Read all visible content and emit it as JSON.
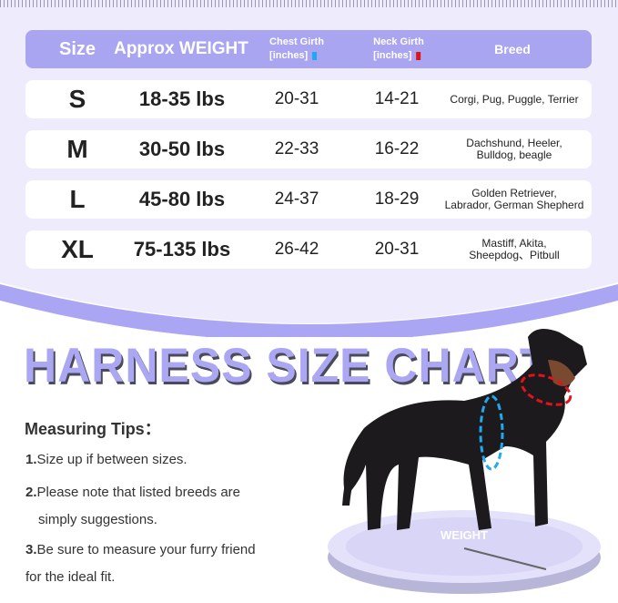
{
  "table": {
    "headers": {
      "size": "Size",
      "weight": "Approx WEIGHT",
      "chest": "Chest Girth",
      "chest_unit": "[inches]",
      "neck": "Neck Girth",
      "neck_unit": "[inches]",
      "breed": "Breed"
    },
    "rows": [
      {
        "size": "S",
        "weight": "18-35 lbs",
        "chest": "20-31",
        "neck": "14-21",
        "breed_1": "Corgi, Pug, Puggle, Terrier",
        "breed_2": ""
      },
      {
        "size": "M",
        "weight": "30-50 lbs",
        "chest": "22-33",
        "neck": "16-22",
        "breed_1": "Dachshund, Heeler,",
        "breed_2": "Bulldog, beagle"
      },
      {
        "size": "L",
        "weight": "45-80 lbs",
        "chest": "24-37",
        "neck": "18-29",
        "breed_1": "Golden Retriever,",
        "breed_2": "Labrador, German Shepherd"
      },
      {
        "size": "XL",
        "weight": "75-135 lbs",
        "chest": "26-42",
        "neck": "20-31",
        "breed_1": "Mastiff, Akita,",
        "breed_2": "Sheepdog、Pitbull"
      }
    ]
  },
  "title": "HARNESS SIZE CHART",
  "tips": {
    "heading": "Measuring Tips：",
    "items": [
      {
        "num": "1.",
        "line1": "Size up if between sizes.",
        "line2": ""
      },
      {
        "num": "2.",
        "line1": "Please note that listed breeds are",
        "line2": "simply suggestions."
      },
      {
        "num": "3.",
        "line1": "Be sure to measure your furry friend",
        "line2": "for the ideal fit."
      }
    ]
  },
  "scale_label": "WEIGHT",
  "colors": {
    "accent": "#a9a5f1",
    "chest": "#1fa9f0",
    "neck": "#e0121a",
    "panel": "#edebfc"
  }
}
